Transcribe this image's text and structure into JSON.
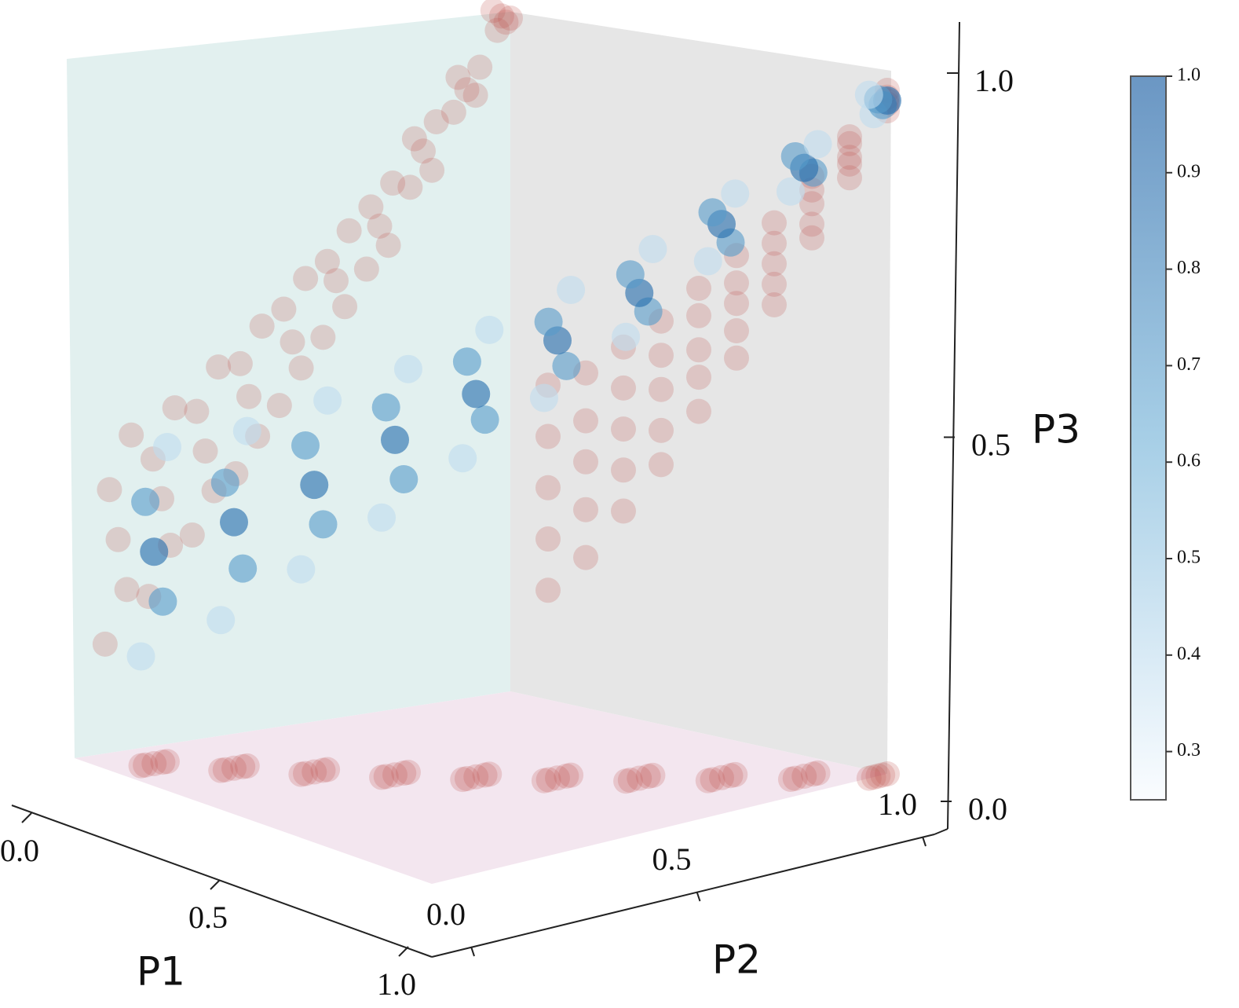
{
  "chart_data": {
    "type": "scatter3d",
    "xlabel": "P1",
    "ylabel": "P2",
    "zlabel": "P3",
    "xlim": [
      0,
      1
    ],
    "ylim": [
      0,
      1
    ],
    "zlim": [
      0,
      1
    ],
    "xticks": [
      {
        "value": 0,
        "label": "0.0"
      },
      0.5,
      {
        "value": 1,
        "label": "1.0"
      }
    ],
    "yticks": [
      {
        "value": 0,
        "label": "0.0"
      },
      0.5,
      {
        "value": 1,
        "label": "1.0"
      }
    ],
    "zticks": [
      {
        "value": 0,
        "label": "0.0"
      },
      0.5,
      {
        "value": 1,
        "label": "1.0"
      }
    ],
    "clim": [
      0.25,
      1
    ],
    "cticks": [
      0.3,
      0.4,
      0.5,
      0.6,
      0.7,
      0.8,
      0.9,
      {
        "value": 1,
        "label": "1.0"
      }
    ],
    "cmap_colors": [
      "#f7fbff",
      "#6baed6",
      "#08519c"
    ],
    "projection_color": "#c0504d",
    "points": [
      [
        0.1,
        0.07,
        0.16,
        0.4
      ],
      [
        0.1,
        0.12,
        0.235,
        0.7
      ],
      [
        0.1,
        0.1,
        0.31,
        0.9
      ],
      [
        0.1,
        0.08,
        0.385,
        0.7
      ],
      [
        0.1,
        0.13,
        0.46,
        0.4
      ],
      [
        0.2,
        0.17,
        0.22,
        0.4
      ],
      [
        0.2,
        0.22,
        0.29,
        0.7
      ],
      [
        0.2,
        0.2,
        0.36,
        0.9
      ],
      [
        0.2,
        0.18,
        0.42,
        0.7
      ],
      [
        0.2,
        0.23,
        0.49,
        0.4
      ],
      [
        0.3,
        0.27,
        0.3,
        0.4
      ],
      [
        0.3,
        0.32,
        0.36,
        0.7
      ],
      [
        0.3,
        0.3,
        0.42,
        0.9
      ],
      [
        0.3,
        0.28,
        0.48,
        0.7
      ],
      [
        0.3,
        0.33,
        0.54,
        0.4
      ],
      [
        0.4,
        0.37,
        0.38,
        0.4
      ],
      [
        0.4,
        0.42,
        0.43,
        0.7
      ],
      [
        0.4,
        0.4,
        0.49,
        0.9
      ],
      [
        0.4,
        0.38,
        0.54,
        0.7
      ],
      [
        0.4,
        0.43,
        0.59,
        0.4
      ],
      [
        0.5,
        0.47,
        0.47,
        0.4
      ],
      [
        0.5,
        0.52,
        0.52,
        0.7
      ],
      [
        0.5,
        0.5,
        0.56,
        0.9
      ],
      [
        0.5,
        0.48,
        0.61,
        0.7
      ],
      [
        0.5,
        0.53,
        0.65,
        0.4
      ],
      [
        0.6,
        0.57,
        0.56,
        0.4
      ],
      [
        0.6,
        0.62,
        0.6,
        0.7
      ],
      [
        0.6,
        0.6,
        0.64,
        0.9
      ],
      [
        0.6,
        0.58,
        0.67,
        0.7
      ],
      [
        0.6,
        0.63,
        0.71,
        0.4
      ],
      [
        0.7,
        0.67,
        0.65,
        0.4
      ],
      [
        0.7,
        0.72,
        0.68,
        0.7
      ],
      [
        0.7,
        0.7,
        0.71,
        0.9
      ],
      [
        0.7,
        0.68,
        0.74,
        0.7
      ],
      [
        0.7,
        0.73,
        0.77,
        0.4
      ],
      [
        0.8,
        0.77,
        0.76,
        0.4
      ],
      [
        0.8,
        0.82,
        0.78,
        0.7
      ],
      [
        0.8,
        0.8,
        0.81,
        0.9
      ],
      [
        0.8,
        0.78,
        0.83,
        0.7
      ],
      [
        0.8,
        0.83,
        0.85,
        0.4
      ],
      [
        0.9,
        0.87,
        0.86,
        0.4
      ],
      [
        0.9,
        0.92,
        0.88,
        0.7
      ],
      [
        0.9,
        0.9,
        0.89,
        0.9
      ],
      [
        0.9,
        0.88,
        0.91,
        0.7
      ],
      [
        0.9,
        0.93,
        0.92,
        0.4
      ],
      [
        1,
        0.97,
        0.97,
        0.4
      ],
      [
        1,
        0.99,
        0.98,
        0.7
      ],
      [
        1,
        1,
        0.985,
        0.9
      ],
      [
        1,
        0.98,
        0.99,
        0.7
      ],
      [
        1,
        0.96,
        1,
        0.4
      ]
    ]
  }
}
